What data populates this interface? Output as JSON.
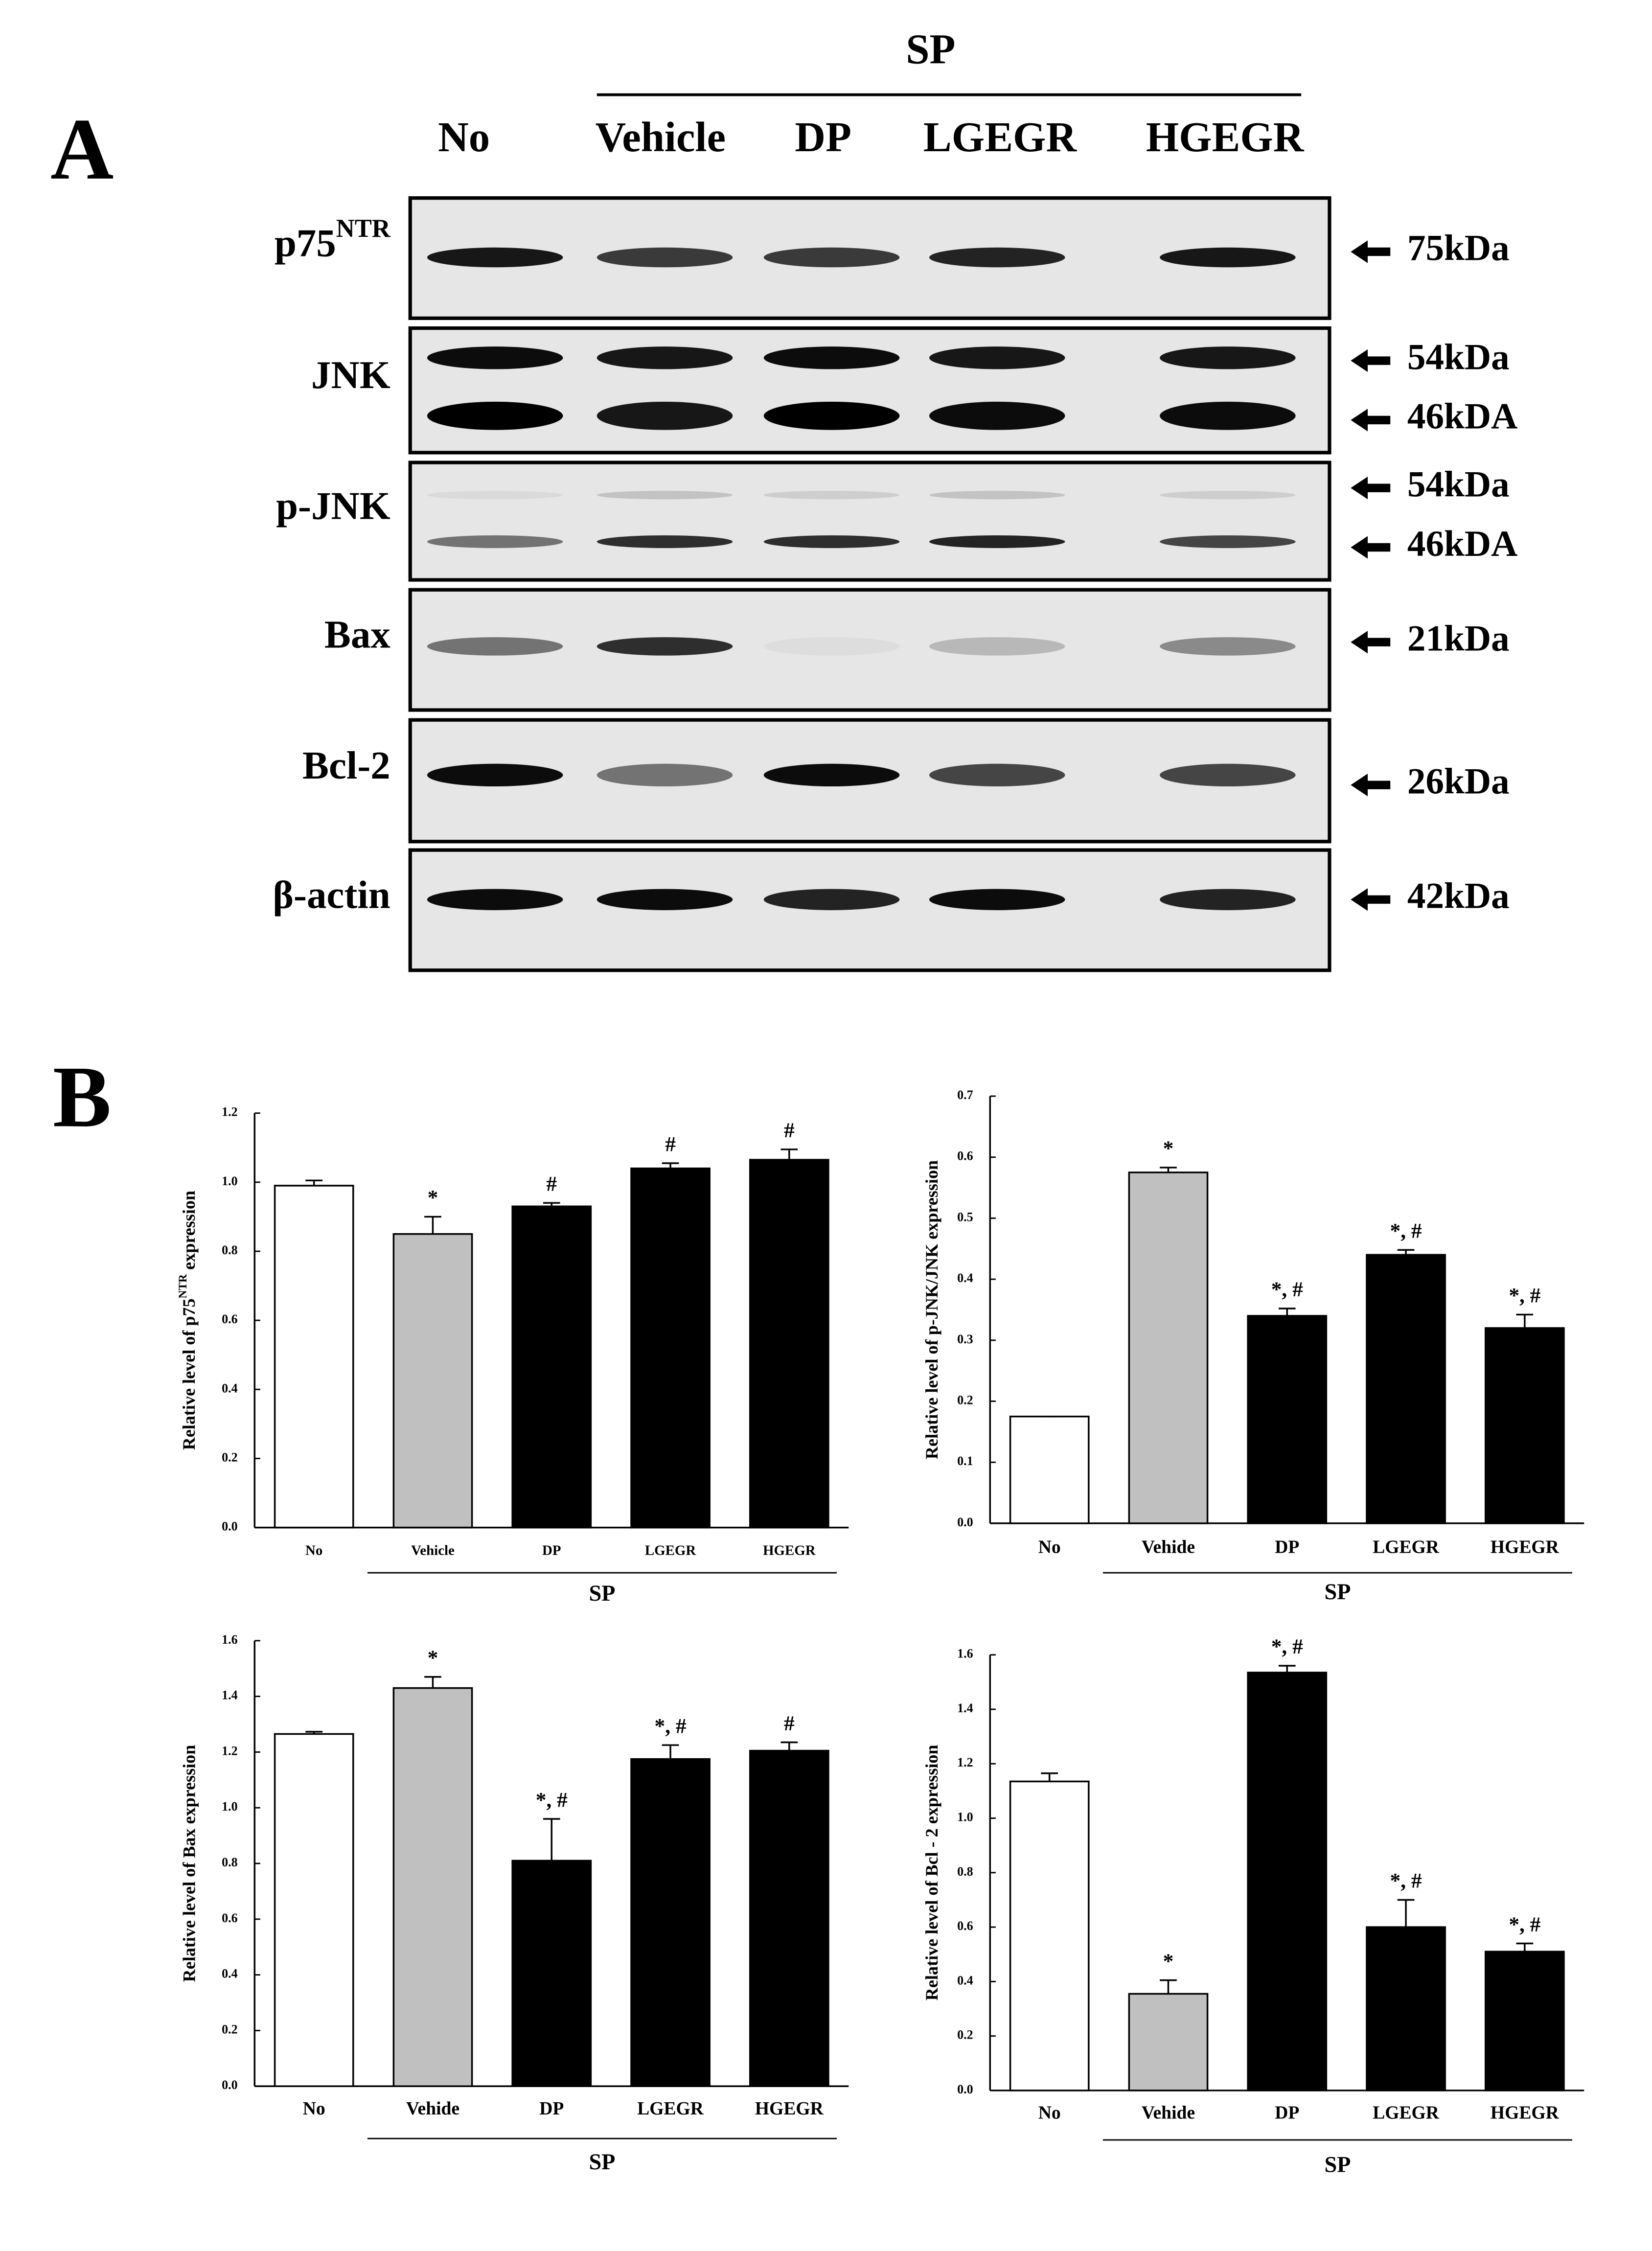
{
  "panel_a": {
    "label": "A",
    "group_label": "SP",
    "lanes": [
      "No",
      "Vehicle",
      "DP",
      "LGEGR",
      "HGEGR"
    ],
    "rows": [
      {
        "label": [
          {
            "text": "p75"
          },
          {
            "text": "NTR",
            "sup": true
          }
        ],
        "markers": [
          "75kDa"
        ]
      },
      {
        "label": "JNK",
        "markers": [
          "54kDa",
          "46kDA"
        ]
      },
      {
        "label": "p-JNK",
        "markers": [
          "54kDa",
          "46kDA"
        ]
      },
      {
        "label": "Bax",
        "markers": [
          "21kDa"
        ]
      },
      {
        "label": "Bcl-2",
        "markers": [
          "26kDa"
        ]
      },
      {
        "label": "β-actin",
        "markers": [
          "42kDa"
        ]
      }
    ]
  },
  "panel_b": {
    "label": "B"
  },
  "chart_data": [
    {
      "type": "bar",
      "ylabel": [
        {
          "text": "Relative level of p75"
        },
        {
          "text": "NTR",
          "sup": true
        },
        {
          "text": "expression"
        }
      ],
      "categories": [
        "No",
        "Vehicle",
        "DP",
        "LGEGR",
        "HGEGR"
      ],
      "group_label": "SP",
      "values": [
        0.99,
        0.85,
        0.93,
        1.04,
        1.065
      ],
      "errors": [
        0.015,
        0.05,
        0.01,
        0.015,
        0.03
      ],
      "colors": [
        "#ffffff",
        "#c0c0c0",
        "#000000",
        "#000000",
        "#000000"
      ],
      "annotations": [
        null,
        "*",
        "#",
        "#",
        "#"
      ],
      "ylim": [
        0,
        1.2
      ],
      "yticks": [
        {
          "value": 0,
          "label": "0.0"
        },
        0.2,
        0.4,
        0.6,
        0.8,
        {
          "value": 1,
          "label": "1.0"
        },
        1.2
      ]
    },
    {
      "type": "bar",
      "ylabel": "Relative level of p-JNK/JNK expression",
      "categories": [
        "No",
        "Vehide",
        "DP",
        "LGEGR",
        "HGEGR"
      ],
      "group_label": "SP",
      "values": [
        0.175,
        0.575,
        0.34,
        0.44,
        0.32
      ],
      "errors": [
        0,
        0.008,
        0.012,
        0.008,
        0.022
      ],
      "colors": [
        "#ffffff",
        "#c0c0c0",
        "#000000",
        "#000000",
        "#000000"
      ],
      "annotations": [
        null,
        "*",
        "*, #",
        "*, #",
        "*, #"
      ],
      "ylim": [
        0,
        0.7
      ],
      "yticks": [
        {
          "value": 0,
          "label": "0.0"
        },
        0.1,
        0.2,
        0.3,
        0.4,
        0.5,
        0.6,
        0.7
      ]
    },
    {
      "type": "bar",
      "ylabel": "Relative level of Bax expression",
      "categories": [
        "No",
        "Vehide",
        "DP",
        "LGEGR",
        "HGEGR"
      ],
      "group_label": "SP",
      "values": [
        1.265,
        1.43,
        0.81,
        1.175,
        1.205
      ],
      "errors": [
        0.008,
        0.04,
        0.15,
        0.05,
        0.03
      ],
      "colors": [
        "#ffffff",
        "#c0c0c0",
        "#000000",
        "#000000",
        "#000000"
      ],
      "annotations": [
        null,
        "*",
        "*, #",
        "*, #",
        "#"
      ],
      "ylim": [
        0,
        1.6
      ],
      "yticks": [
        {
          "value": 0,
          "label": "0.0"
        },
        0.2,
        0.4,
        0.6,
        0.8,
        {
          "value": 1,
          "label": "1.0"
        },
        1.2,
        1.4,
        1.6
      ]
    },
    {
      "type": "bar",
      "ylabel": "Relative level of Bcl - 2 expression",
      "categories": [
        "No",
        "Vehide",
        "DP",
        "LGEGR",
        "HGEGR"
      ],
      "group_label": "SP",
      "values": [
        1.135,
        0.355,
        1.535,
        0.6,
        0.51
      ],
      "errors": [
        0.03,
        0.05,
        0.025,
        0.1,
        0.03
      ],
      "colors": [
        "#ffffff",
        "#c0c0c0",
        "#000000",
        "#000000",
        "#000000"
      ],
      "annotations": [
        null,
        "*",
        "*, #",
        "*, #",
        "*, #"
      ],
      "ylim": [
        0,
        1.6
      ],
      "yticks": [
        {
          "value": 0,
          "label": "0.0"
        },
        0.2,
        0.4,
        0.6,
        0.8,
        {
          "value": 1,
          "label": "1.0"
        },
        1.2,
        1.4,
        1.6
      ]
    }
  ]
}
